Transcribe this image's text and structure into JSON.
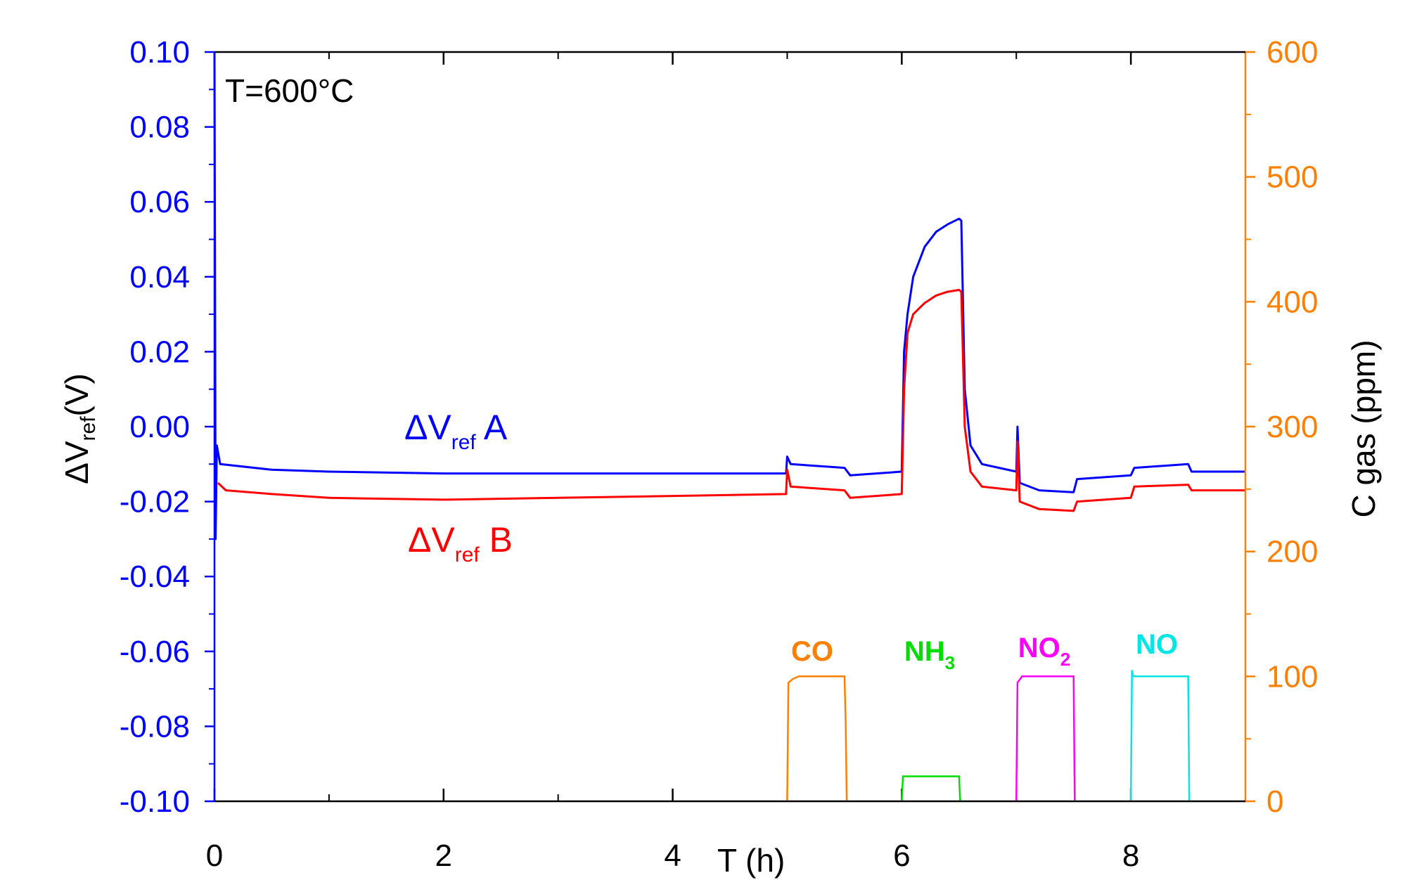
{
  "chart_data": {
    "type": "line",
    "annotation_temperature": "T=600°C",
    "xlabel": "T (h)",
    "ylabel_left": {
      "prefix": "ΔV",
      "sub": "ref",
      "suffix": "(V)"
    },
    "ylabel_right": "C gas (ppm)",
    "xlim": [
      0,
      9
    ],
    "ylim_left": [
      -0.1,
      0.1
    ],
    "ylim_right": [
      0,
      600
    ],
    "x_ticks": [
      "0",
      "2",
      "4",
      "6",
      "8"
    ],
    "y_left_ticks": [
      "0.10",
      "0.08",
      "0.06",
      "0.04",
      "0.02",
      "0.00",
      "-0.02",
      "-0.04",
      "-0.06",
      "-0.08",
      "-0.10"
    ],
    "y_right_ticks": [
      "600",
      "500",
      "400",
      "300",
      "200",
      "100",
      "0"
    ],
    "colors": {
      "left_axis": "#0000ff",
      "right_axis": "#ff8000",
      "seriesA": "#0000ff",
      "seriesB": "#ff0000",
      "CO": "#ff8000",
      "NH3": "#00dd00",
      "NO2": "#ff00ff",
      "NO": "#00e5e5"
    },
    "series_labels": {
      "A": {
        "prefix": "ΔV",
        "sub": "ref",
        "suffix": " A"
      },
      "B": {
        "prefix": "ΔV",
        "sub": "ref",
        "suffix": " B"
      }
    },
    "voltage_series": [
      {
        "name": "ΔVref A",
        "axis": "left",
        "points": [
          [
            0,
            0.1
          ],
          [
            0.01,
            -0.03
          ],
          [
            0.02,
            -0.005
          ],
          [
            0.05,
            -0.01
          ],
          [
            0.5,
            -0.0115
          ],
          [
            1,
            -0.012
          ],
          [
            2,
            -0.0125
          ],
          [
            3,
            -0.0125
          ],
          [
            4,
            -0.0125
          ],
          [
            4.99,
            -0.0125
          ],
          [
            5.0,
            -0.008
          ],
          [
            5.03,
            -0.01
          ],
          [
            5.5,
            -0.011
          ],
          [
            5.55,
            -0.013
          ],
          [
            6.0,
            -0.012
          ],
          [
            6.02,
            0.02
          ],
          [
            6.05,
            0.03
          ],
          [
            6.1,
            0.04
          ],
          [
            6.2,
            0.048
          ],
          [
            6.3,
            0.052
          ],
          [
            6.4,
            0.054
          ],
          [
            6.5,
            0.0555
          ],
          [
            6.52,
            0.055
          ],
          [
            6.55,
            0.01
          ],
          [
            6.6,
            -0.005
          ],
          [
            6.7,
            -0.01
          ],
          [
            7.0,
            -0.012
          ],
          [
            7.01,
            0.0
          ],
          [
            7.03,
            -0.015
          ],
          [
            7.2,
            -0.017
          ],
          [
            7.5,
            -0.0175
          ],
          [
            7.53,
            -0.014
          ],
          [
            8.0,
            -0.013
          ],
          [
            8.03,
            -0.011
          ],
          [
            8.5,
            -0.01
          ],
          [
            8.53,
            -0.012
          ],
          [
            9.0,
            -0.012
          ]
        ]
      },
      {
        "name": "ΔVref B",
        "axis": "left",
        "points": [
          [
            0.03,
            -0.015
          ],
          [
            0.1,
            -0.017
          ],
          [
            0.5,
            -0.018
          ],
          [
            1,
            -0.019
          ],
          [
            2,
            -0.0195
          ],
          [
            3,
            -0.019
          ],
          [
            4,
            -0.0185
          ],
          [
            4.99,
            -0.018
          ],
          [
            5.0,
            -0.0115
          ],
          [
            5.03,
            -0.016
          ],
          [
            5.5,
            -0.017
          ],
          [
            5.55,
            -0.019
          ],
          [
            6.0,
            -0.018
          ],
          [
            6.02,
            0.01
          ],
          [
            6.05,
            0.025
          ],
          [
            6.1,
            0.03
          ],
          [
            6.2,
            0.033
          ],
          [
            6.3,
            0.035
          ],
          [
            6.4,
            0.036
          ],
          [
            6.5,
            0.0365
          ],
          [
            6.52,
            0.036
          ],
          [
            6.55,
            0.0
          ],
          [
            6.6,
            -0.012
          ],
          [
            6.7,
            -0.016
          ],
          [
            7.0,
            -0.017
          ],
          [
            7.01,
            -0.004
          ],
          [
            7.03,
            -0.02
          ],
          [
            7.2,
            -0.022
          ],
          [
            7.5,
            -0.0225
          ],
          [
            7.53,
            -0.02
          ],
          [
            8.0,
            -0.019
          ],
          [
            8.03,
            -0.016
          ],
          [
            8.5,
            -0.0155
          ],
          [
            8.53,
            -0.017
          ],
          [
            9.0,
            -0.017
          ]
        ]
      }
    ],
    "gas_series": [
      {
        "name": "CO",
        "sub": "",
        "axis": "right",
        "points": [
          [
            5.0,
            0
          ],
          [
            5.01,
            95
          ],
          [
            5.05,
            98
          ],
          [
            5.1,
            100
          ],
          [
            5.5,
            100
          ],
          [
            5.51,
            65
          ],
          [
            5.52,
            0
          ]
        ]
      },
      {
        "name": "NH",
        "sub": "3",
        "axis": "right",
        "points": [
          [
            6.0,
            0
          ],
          [
            6.01,
            20
          ],
          [
            6.5,
            20
          ],
          [
            6.51,
            0
          ]
        ]
      },
      {
        "name": "NO",
        "sub": "2",
        "axis": "right",
        "points": [
          [
            7.0,
            0
          ],
          [
            7.01,
            95
          ],
          [
            7.05,
            100
          ],
          [
            7.5,
            100
          ],
          [
            7.51,
            0
          ]
        ]
      },
      {
        "name": "NO",
        "sub": "",
        "axis": "right",
        "points": [
          [
            8.0,
            0
          ],
          [
            8.01,
            105
          ],
          [
            8.02,
            100
          ],
          [
            8.5,
            100
          ],
          [
            8.51,
            0
          ]
        ]
      }
    ]
  }
}
